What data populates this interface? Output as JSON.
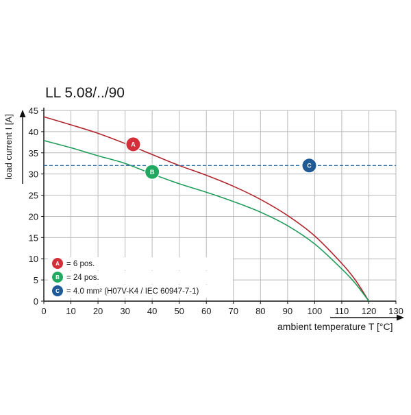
{
  "chart_data": {
    "type": "line",
    "title": "LL 5.08/../90",
    "xlabel": "ambient temperature T [°C]",
    "ylabel": "load current I [A]",
    "xlim": [
      0,
      130
    ],
    "ylim": [
      0,
      45
    ],
    "x_ticks": [
      0,
      10,
      20,
      30,
      40,
      50,
      60,
      70,
      80,
      90,
      100,
      110,
      120,
      130
    ],
    "y_ticks": [
      0,
      5,
      10,
      15,
      20,
      25,
      30,
      35,
      40,
      45
    ],
    "x_tick_labels": [
      "0",
      "10",
      "20",
      "30",
      "40",
      "50",
      "60",
      "70",
      "80",
      "90",
      "100",
      "110",
      "120",
      "130"
    ],
    "y_tick_labels": [
      "0",
      "5",
      "10",
      "15",
      "20",
      "25",
      "30",
      "35",
      "40",
      "45"
    ],
    "grid": true,
    "legend_position": "bottom-left",
    "series": [
      {
        "marker": "A",
        "color": "#b0252c",
        "marker_color": "#d42e3a",
        "style": "solid",
        "x": [
          0,
          10,
          20,
          30,
          40,
          50,
          60,
          70,
          80,
          90,
          100,
          110,
          115,
          120
        ],
        "y": [
          43.5,
          41.6,
          39.6,
          37.2,
          34.6,
          32.0,
          29.7,
          27.1,
          24.0,
          20.2,
          15.4,
          8.9,
          5.0,
          0
        ],
        "marker_at": [
          33,
          37
        ]
      },
      {
        "marker": "B",
        "color": "#1f9c5a",
        "marker_color": "#22a860",
        "style": "solid",
        "x": [
          0,
          10,
          20,
          30,
          40,
          50,
          60,
          70,
          80,
          90,
          100,
          110,
          115,
          120
        ],
        "y": [
          37.9,
          36.2,
          34.3,
          32.5,
          30.0,
          27.7,
          25.7,
          23.5,
          21.0,
          17.8,
          13.5,
          7.6,
          4.2,
          0
        ],
        "marker_at": [
          40,
          30.5
        ]
      },
      {
        "marker": "C",
        "color": "#2d6da4",
        "marker_color": "#1f5a96",
        "style": "dashed",
        "x": [
          0,
          130
        ],
        "y": [
          32,
          32
        ],
        "marker_at": [
          98,
          32
        ]
      }
    ],
    "legend": [
      {
        "badge": "A",
        "text": "= 6 pos."
      },
      {
        "badge": "B",
        "text": "= 24 pos."
      },
      {
        "badge": "C",
        "text": "= 4.0 mm² (H07V-K4 / IEC 60947-7-1)"
      }
    ]
  }
}
